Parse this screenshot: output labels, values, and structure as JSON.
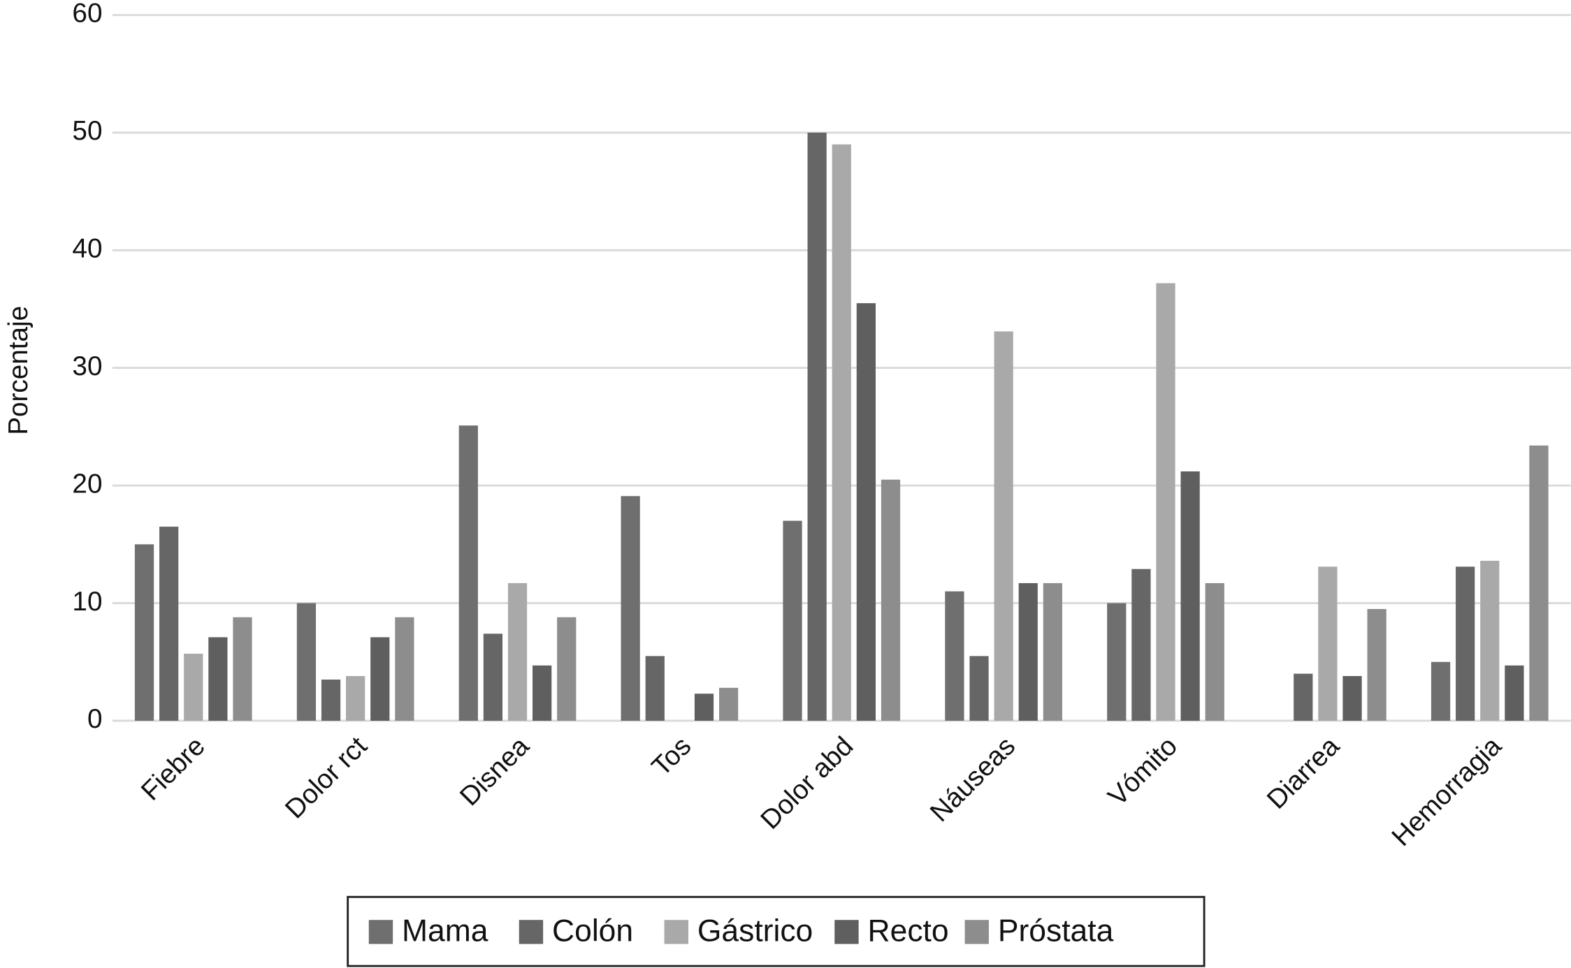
{
  "chart_data": {
    "type": "bar",
    "ylabel": "Porcentaje",
    "categories": [
      "Fiebre",
      "Dolor rct",
      "Disnea",
      "Tos",
      "Dolor abd",
      "Náuseas",
      "Vómito",
      "Diarrea",
      "Hemorragia"
    ],
    "series": [
      {
        "name": "Mama",
        "color": "#6f6f6f",
        "values": [
          15,
          10,
          25.1,
          19.1,
          17,
          11,
          10,
          0,
          5
        ]
      },
      {
        "name": "Colón",
        "color": "#666666",
        "values": [
          16.5,
          3.5,
          7.4,
          5.5,
          50,
          5.5,
          12.9,
          4,
          13.1
        ]
      },
      {
        "name": "Gástrico",
        "color": "#a9a9a9",
        "values": [
          5.7,
          3.8,
          11.7,
          0,
          49,
          33.1,
          37.2,
          13.1,
          13.6
        ]
      },
      {
        "name": "Recto",
        "color": "#5f5f5f",
        "values": [
          7.1,
          7.1,
          4.7,
          2.3,
          35.5,
          11.7,
          21.2,
          3.8,
          4.7
        ]
      },
      {
        "name": "Próstata",
        "color": "#8d8d8d",
        "values": [
          8.8,
          8.8,
          8.8,
          2.8,
          20.5,
          11.7,
          11.7,
          9.5,
          23.4
        ]
      }
    ],
    "ylim": [
      0,
      60
    ],
    "yticks": [
      0,
      10,
      20,
      30,
      40,
      50,
      60
    ],
    "grid": true,
    "legend": "bottom"
  }
}
